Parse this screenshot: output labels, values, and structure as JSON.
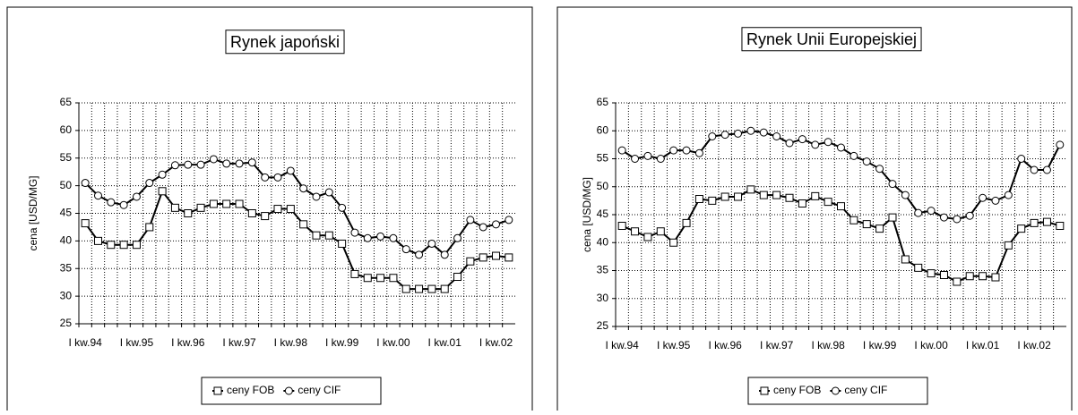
{
  "chart_data": [
    {
      "type": "line",
      "title": "Rynek japoński",
      "ylabel": "cena [USD/MG]",
      "categories": [
        "I kw.94",
        null,
        null,
        null,
        "I kw.95",
        null,
        null,
        null,
        "I kw.96",
        null,
        null,
        null,
        "I kw.97",
        null,
        null,
        null,
        "I kw.98",
        null,
        null,
        null,
        "I kw.99",
        null,
        null,
        null,
        "I kw.00",
        null,
        null,
        null,
        "I kw.01",
        null,
        null,
        null,
        "I kw.02",
        null
      ],
      "series": [
        {
          "name": "ceny FOB",
          "color": "#000000",
          "marker": "square",
          "values": [
            43.2,
            40,
            39.3,
            39.3,
            39.3,
            42.5,
            49,
            46,
            45,
            46,
            46.7,
            46.7,
            46.7,
            45,
            44.5,
            45.8,
            45.8,
            43,
            41,
            41,
            39.5,
            34,
            33.3,
            33.3,
            33.3,
            31.3,
            31.3,
            31.3,
            31.3,
            33.5,
            36.3,
            37,
            37.3,
            37
          ]
        },
        {
          "name": "ceny CIF",
          "color": "#000000",
          "marker": "circle",
          "values": [
            50.5,
            48.2,
            47,
            46.5,
            48,
            50.5,
            52,
            53.7,
            53.8,
            53.8,
            54.8,
            54,
            54,
            54.2,
            51.5,
            51.5,
            52.7,
            49.5,
            48,
            48.8,
            46,
            41.5,
            40.5,
            40.8,
            40.5,
            38.5,
            37.5,
            39.5,
            37.5,
            40.5,
            43.8,
            42.5,
            43,
            43.8
          ]
        }
      ],
      "ylim": [
        25,
        65
      ],
      "yticks": [
        25,
        30,
        35,
        40,
        45,
        50,
        55,
        60,
        65
      ],
      "grid": true
    },
    {
      "type": "line",
      "title": "Rynek Unii Europejskiej",
      "ylabel": "cena [USD/MG]",
      "categories": [
        "I kw.94",
        null,
        null,
        null,
        "I kw.95",
        null,
        null,
        null,
        "I kw.96",
        null,
        null,
        null,
        "I kw.97",
        null,
        null,
        null,
        "I kw.98",
        null,
        null,
        null,
        "I kw.99",
        null,
        null,
        null,
        "I kw.00",
        null,
        null,
        null,
        "I kw.01",
        null,
        null,
        null,
        "I kw.02",
        null,
        null
      ],
      "series": [
        {
          "name": "ceny FOB",
          "color": "#000000",
          "marker": "square",
          "values": [
            43,
            42,
            41,
            42,
            40,
            43.5,
            47.8,
            47.5,
            48.2,
            48.2,
            49.5,
            48.5,
            48.5,
            48,
            47,
            48.3,
            47.3,
            46.5,
            44,
            43.3,
            42.5,
            44.5,
            37,
            35.5,
            34.5,
            34.2,
            33,
            34,
            34,
            33.8,
            39.5,
            42.5,
            43.5,
            43.7,
            43
          ]
        },
        {
          "name": "ceny CIF",
          "color": "#000000",
          "marker": "circle",
          "values": [
            56.5,
            55,
            55.5,
            55,
            56.5,
            56.5,
            56,
            59,
            59.3,
            59.5,
            60,
            59.7,
            59,
            57.8,
            58.5,
            57.5,
            58,
            57,
            55.5,
            54.5,
            53.2,
            50.5,
            48.5,
            45.3,
            45.7,
            44.5,
            44.2,
            44.8,
            48,
            47.5,
            48.5,
            55,
            53,
            53,
            57.5
          ]
        }
      ],
      "ylim": [
        25,
        65
      ],
      "yticks": [
        25,
        30,
        35,
        40,
        45,
        50,
        55,
        60,
        65
      ],
      "grid": true
    }
  ]
}
